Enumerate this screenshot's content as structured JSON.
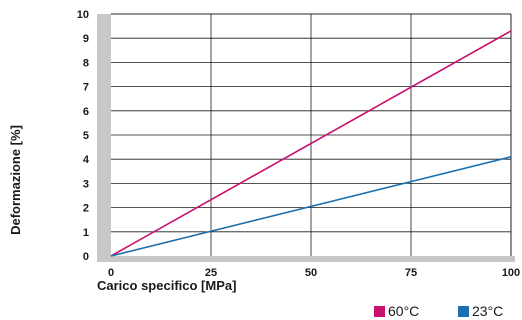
{
  "chart_data": {
    "type": "line",
    "xlabel": "Carico specifico [MPa]",
    "ylabel": "Deformazione [%]",
    "xlim": [
      0,
      100
    ],
    "ylim": [
      0,
      10
    ],
    "x_ticks": [
      "0",
      "25",
      "50",
      "75",
      "100"
    ],
    "y_ticks": [
      "0",
      "1",
      "2",
      "3",
      "4",
      "5",
      "6",
      "7",
      "8",
      "9",
      "10"
    ],
    "grid": true,
    "legend_position": "bottom-right",
    "series": [
      {
        "name": "60°C",
        "color": "#c8106e",
        "x": [
          0,
          100
        ],
        "y": [
          0,
          9.3
        ]
      },
      {
        "name": "23°C",
        "color": "#1a6fb0",
        "x": [
          0,
          100
        ],
        "y": [
          0,
          4.1
        ]
      }
    ]
  }
}
